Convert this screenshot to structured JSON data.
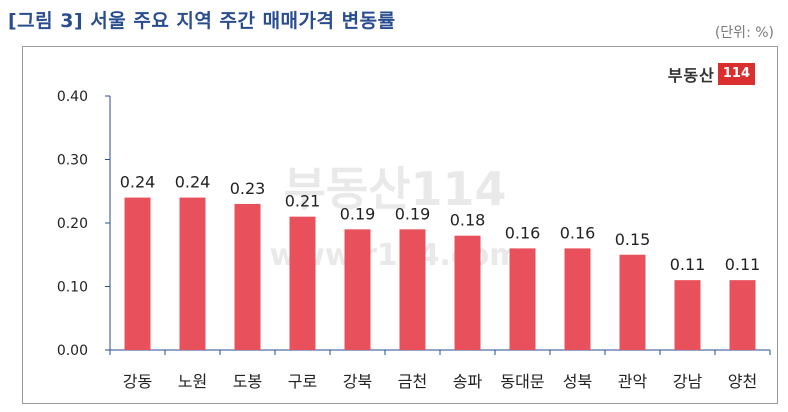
{
  "title": "[그림 3] 서울 주요 지역 주간 매매가격 변동률",
  "unit": "(단위: %)",
  "logo": {
    "text": "부동산",
    "number": "114"
  },
  "watermark": {
    "brand": "부동산114",
    "url": "www.r114.com"
  },
  "colors": {
    "bar": "#e8505b",
    "title": "#2a4d8f",
    "logo_accent": "#d9302f",
    "axis": "#2a4d8f"
  },
  "chart_data": {
    "type": "bar",
    "categories": [
      "강동",
      "노원",
      "도봉",
      "구로",
      "강북",
      "금천",
      "송파",
      "동대문",
      "성북",
      "관악",
      "강남",
      "양천"
    ],
    "values": [
      0.24,
      0.24,
      0.23,
      0.21,
      0.19,
      0.19,
      0.18,
      0.16,
      0.16,
      0.15,
      0.11,
      0.11
    ],
    "value_labels": [
      "0.24",
      "0.24",
      "0.23",
      "0.21",
      "0.19",
      "0.19",
      "0.18",
      "0.16",
      "0.16",
      "0.15",
      "0.11",
      "0.11"
    ],
    "y_ticks": [
      "0.40",
      "0.30",
      "0.20",
      "0.10",
      "0.00"
    ],
    "ylim": [
      0,
      0.4
    ],
    "grid": false,
    "legend": "none"
  }
}
